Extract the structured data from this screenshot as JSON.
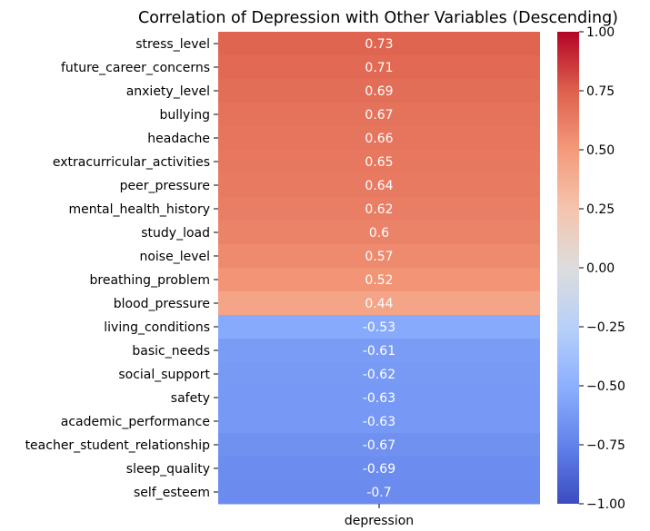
{
  "chart_data": {
    "type": "heatmap",
    "title": "Correlation of Depression with Other Variables (Descending)",
    "xlabel": "",
    "ylabel": "",
    "columns": [
      "depression"
    ],
    "rows": [
      "stress_level",
      "future_career_concerns",
      "anxiety_level",
      "bullying",
      "headache",
      "extracurricular_activities",
      "peer_pressure",
      "mental_health_history",
      "study_load",
      "noise_level",
      "breathing_problem",
      "blood_pressure",
      "living_conditions",
      "basic_needs",
      "social_support",
      "safety",
      "academic_performance",
      "teacher_student_relationship",
      "sleep_quality",
      "self_esteem"
    ],
    "values": [
      0.73,
      0.71,
      0.69,
      0.67,
      0.66,
      0.65,
      0.64,
      0.62,
      0.6,
      0.57,
      0.52,
      0.44,
      -0.53,
      -0.61,
      -0.62,
      -0.63,
      -0.63,
      -0.67,
      -0.69,
      -0.7
    ],
    "value_labels": [
      "0.73",
      "0.71",
      "0.69",
      "0.67",
      "0.66",
      "0.65",
      "0.64",
      "0.62",
      "0.6",
      "0.57",
      "0.52",
      "0.44",
      "-0.53",
      "-0.61",
      "-0.62",
      "-0.63",
      "-0.63",
      "-0.67",
      "-0.69",
      "-0.7"
    ],
    "colormap": "coolwarm",
    "vmin": -1.0,
    "vmax": 1.0,
    "colorbar": {
      "ticks": [
        1.0,
        0.75,
        0.5,
        0.25,
        0.0,
        -0.25,
        -0.5,
        -0.75,
        -1.0
      ],
      "tick_labels": [
        "1.00",
        "0.75",
        "0.50",
        "0.25",
        "0.00",
        "−0.25",
        "−0.50",
        "−0.75",
        "−1.00"
      ]
    }
  }
}
